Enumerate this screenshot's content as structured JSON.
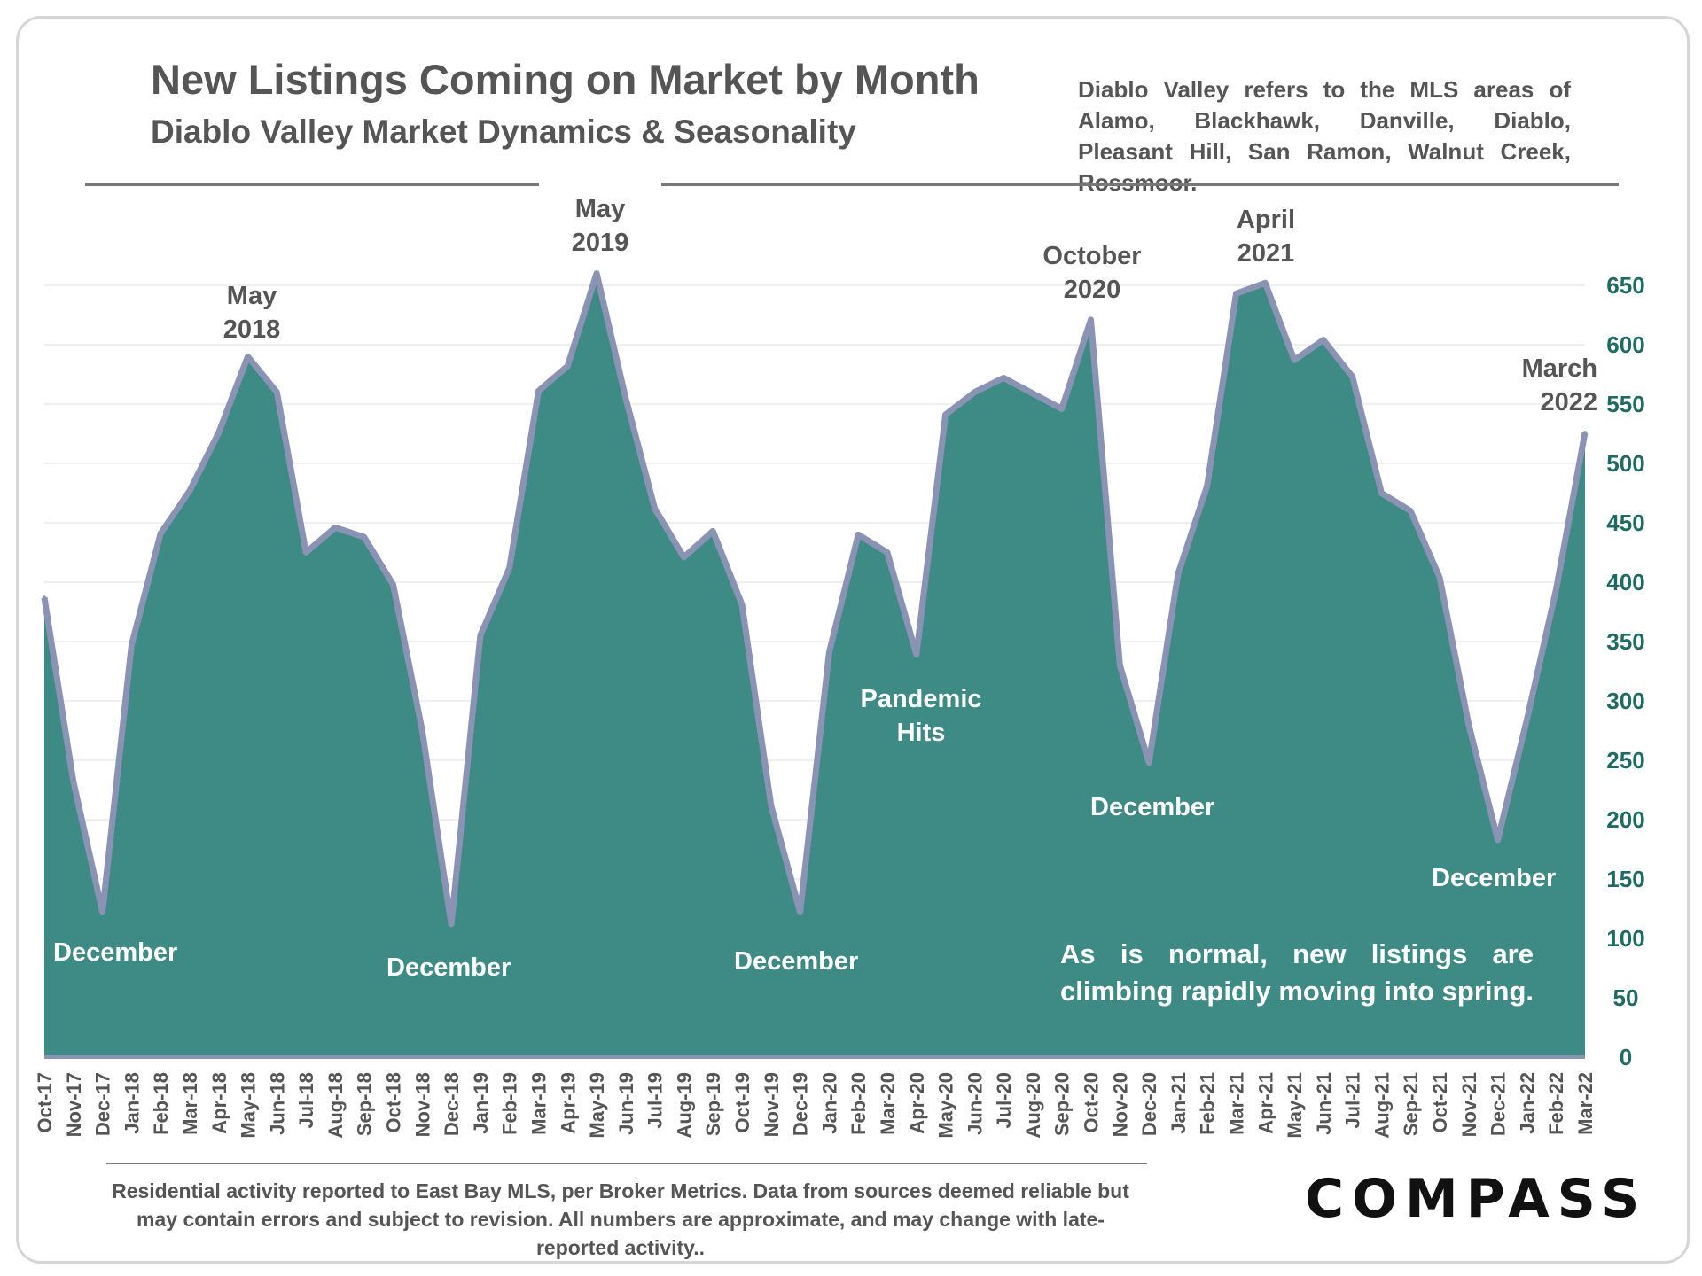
{
  "header": {
    "title": "New Listings Coming on Market by Month",
    "subtitle": "Diablo Valley Market Dynamics & Seasonality",
    "note": "Diablo Valley refers to the MLS areas of Alamo, Blackhawk, Danville, Diablo, Pleasant Hill, San Ramon, Walnut Creek, Rossmoor."
  },
  "footer": {
    "disclaimer": "Residential activity reported to East Bay MLS, per Broker Metrics. Data from sources deemed reliable but may contain errors and subject to revision. All numbers are approximate, and may change with late-reported activity..",
    "logo": "COMPASS"
  },
  "callouts": {
    "may2018": "May\n2018",
    "may2019": "May\n2019",
    "oct2020": "October\n2020",
    "apr2021": "April\n2021",
    "mar2022": "March\n2022",
    "pandemic": "Pandemic\nHits",
    "dec1": "December",
    "dec2": "December",
    "dec3": "December",
    "dec4": "December",
    "dec5": "December",
    "spring": "As is normal, new listings are climbing rapidly moving into spring."
  },
  "colors": {
    "area_fill": "#3d8b84",
    "area_line": "#8a93b3",
    "axis_tick_text": "#1e6b63",
    "text_dark": "#555555"
  },
  "chart_data": {
    "type": "area",
    "title": "New Listings Coming on Market by Month",
    "categories": [
      "Oct-17",
      "Nov-17",
      "Dec-17",
      "Jan-18",
      "Feb-18",
      "Mar-18",
      "Apr-18",
      "May-18",
      "Jun-18",
      "Jul-18",
      "Aug-18",
      "Sep-18",
      "Oct-18",
      "Nov-18",
      "Dec-18",
      "Jan-19",
      "Feb-19",
      "Mar-19",
      "Apr-19",
      "May-19",
      "Jun-19",
      "Jul-19",
      "Aug-19",
      "Sep-19",
      "Oct-19",
      "Nov-19",
      "Dec-19",
      "Jan-20",
      "Feb-20",
      "Mar-20",
      "Apr-20",
      "May-20",
      "Jun-20",
      "Jul-20",
      "Aug-20",
      "Sep-20",
      "Oct-20",
      "Nov-20",
      "Dec-20",
      "Jan-21",
      "Feb-21",
      "Mar-21",
      "Apr-21",
      "May-21",
      "Jun-21",
      "Jul-21",
      "Aug-21",
      "Sep-21",
      "Oct-21",
      "Nov-21",
      "Dec-21",
      "Jan-22",
      "Feb-22",
      "Mar-22"
    ],
    "values": [
      387,
      232,
      122,
      347,
      441,
      477,
      526,
      590,
      560,
      425,
      446,
      438,
      398,
      275,
      112,
      355,
      412,
      561,
      582,
      660,
      555,
      462,
      421,
      443,
      381,
      212,
      122,
      341,
      440,
      425,
      339,
      541,
      560,
      572,
      559,
      546,
      621,
      330,
      248,
      407,
      481,
      643,
      652,
      587,
      604,
      573,
      475,
      460,
      404,
      280,
      183,
      284,
      393,
      526
    ],
    "ylim": [
      0,
      650
    ],
    "yticks": [
      0,
      50,
      100,
      150,
      200,
      250,
      300,
      350,
      400,
      450,
      500,
      550,
      600,
      650
    ],
    "xlabel": "",
    "ylabel": "",
    "grid": false,
    "yaxis_side": "right"
  }
}
